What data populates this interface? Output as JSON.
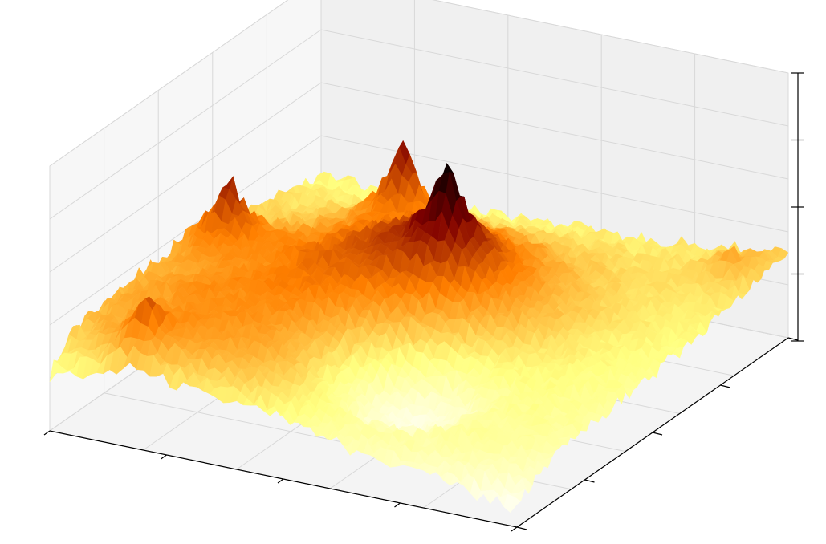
{
  "chart_data": {
    "type": "surface3d",
    "title": "",
    "xlabel": "",
    "ylabel": "",
    "zlabel": "",
    "colormap": "afmhot_r",
    "tick_labels_visible": false,
    "grid": true,
    "pane_color": "#f2f2f2",
    "edge_color": "#ffffff",
    "x_ticks": 5,
    "y_ticks": 5,
    "z_ticks": 5,
    "description_values": {
      "z_range": [
        0,
        1
      ],
      "peaks": [
        {
          "x": 0.17,
          "y": 0.06,
          "z": 0.72
        },
        {
          "x": 0.08,
          "y": 0.52,
          "z": 0.86
        },
        {
          "x": 0.3,
          "y": 0.78,
          "z": 0.92
        },
        {
          "x": 0.55,
          "y": 0.52,
          "z": 1.0
        },
        {
          "x": 0.94,
          "y": 0.9,
          "z": 0.62
        }
      ],
      "valley": {
        "x": 0.62,
        "y": 0.24,
        "z": 0.05
      }
    }
  }
}
